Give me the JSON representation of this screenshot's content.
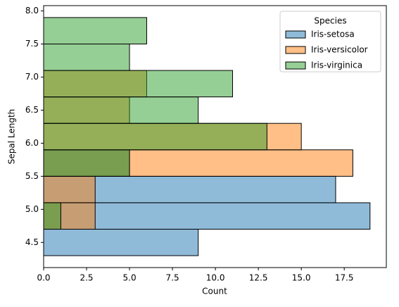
{
  "chart_data": {
    "type": "histogram",
    "orientation": "horizontal",
    "xlabel": "Count",
    "ylabel": "Sepal Length",
    "bins": [
      4.3,
      4.7,
      5.1,
      5.5,
      5.9,
      6.3,
      6.7,
      7.1,
      7.5,
      7.9
    ],
    "series": [
      {
        "name": "Iris-setosa",
        "color": "#1f77b4",
        "values": [
          9,
          19,
          17,
          5,
          0,
          0,
          0,
          0,
          0
        ]
      },
      {
        "name": "Iris-versicolor",
        "color": "#ff7f0e",
        "values": [
          0,
          3,
          3,
          18,
          15,
          5,
          6,
          0,
          0
        ]
      },
      {
        "name": "Iris-virginica",
        "color": "#2ca02c",
        "values": [
          0,
          1,
          0,
          5,
          13,
          9,
          11,
          5,
          6
        ]
      }
    ],
    "legend_title": "Species",
    "legend_position": "upper right",
    "xlim": [
      0,
      19.95
    ],
    "ylim": [
      4.12,
      8.08
    ],
    "xticks": [
      {
        "value": 0,
        "label": "0.0"
      },
      2.5,
      {
        "value": 5,
        "label": "5.0"
      },
      7.5,
      {
        "value": 10,
        "label": "10.0"
      },
      12.5,
      {
        "value": 15,
        "label": "15.0"
      },
      17.5
    ],
    "yticks": [
      4.5,
      {
        "value": 5,
        "label": "5.0"
      },
      5.5,
      {
        "value": 6,
        "label": "6.0"
      },
      6.5,
      {
        "value": 7,
        "label": "7.0"
      },
      7.5,
      {
        "value": 8,
        "label": "8.0"
      }
    ],
    "bar_alpha": 0.5
  }
}
